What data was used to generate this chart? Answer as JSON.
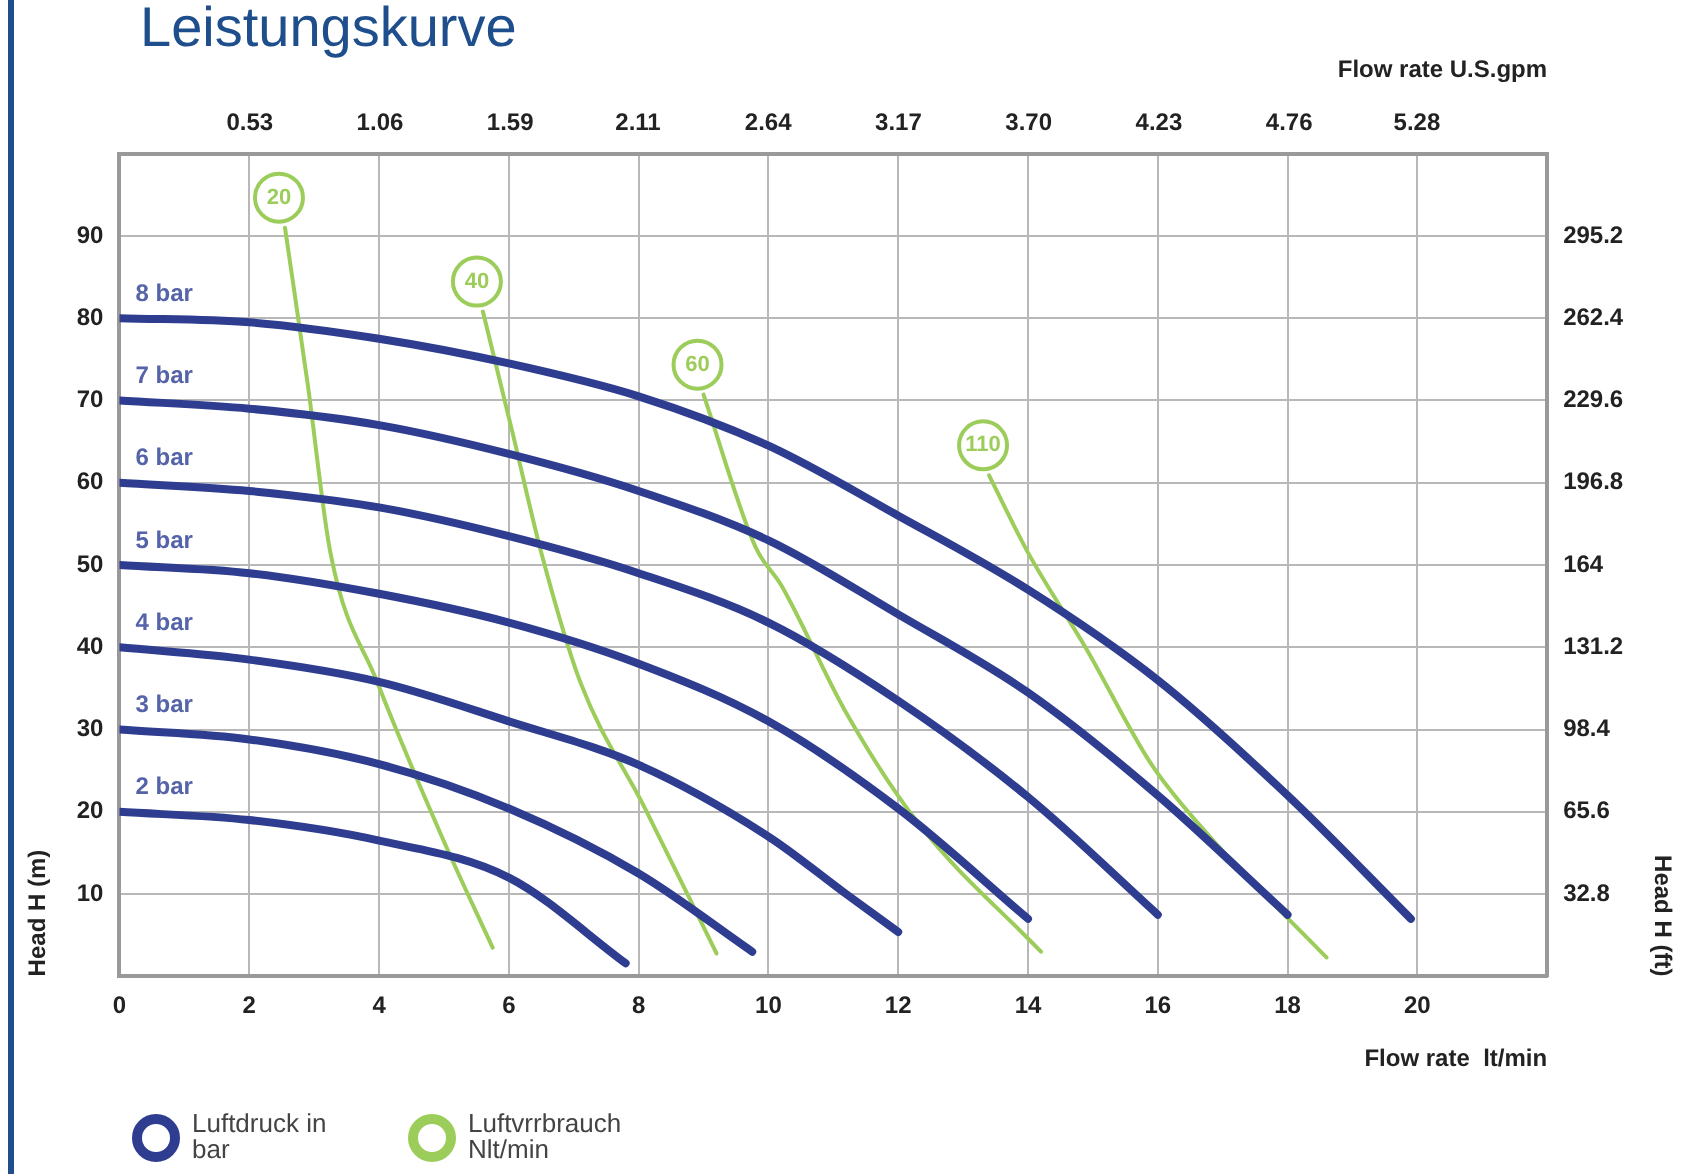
{
  "chart_data": {
    "type": "line",
    "title": "Leistungskurve",
    "xlabel": "Flow rate  lt/min",
    "x2label": "Flow rate U.S.gpm",
    "ylabel": "Head H (m)",
    "y2label": "Head H (ft)",
    "xlim": [
      0,
      22
    ],
    "xticks": [
      0,
      2,
      4,
      6,
      8,
      10,
      12,
      14,
      16,
      18,
      20
    ],
    "x2lim": [
      0,
      5.81
    ],
    "x2ticks": [
      0.53,
      1.06,
      1.59,
      2.11,
      2.64,
      3.17,
      {
        "value": 3.7,
        "label": "3.70"
      },
      4.23,
      4.76,
      5.28
    ],
    "ylim": [
      0,
      100
    ],
    "yticks": [
      10,
      20,
      30,
      40,
      50,
      60,
      70,
      80,
      90
    ],
    "y2lim": [
      0,
      328
    ],
    "y2ticks": [
      32.8,
      65.6,
      98.4,
      131.2,
      164,
      196.8,
      229.6,
      262.4,
      295.2
    ],
    "grid": true,
    "marker": "none",
    "line_style": "solid",
    "annotations": [
      "Luftdruck in bar",
      "Luftvrrbrauch Nlt/min"
    ],
    "series": [
      {
        "name": "8 bar",
        "color": "#2e3d8f",
        "x": [
          0,
          2,
          4,
          6,
          8,
          10,
          12,
          14,
          16,
          18,
          19.9
        ],
        "values": [
          80,
          79.5,
          77.5,
          74.5,
          70.5,
          64.5,
          56,
          47,
          36,
          22,
          7
        ]
      },
      {
        "name": "7 bar",
        "color": "#2e3d8f",
        "x": [
          0,
          2,
          4,
          6,
          8,
          10,
          12,
          14,
          16,
          18
        ],
        "values": [
          70,
          69,
          67,
          63.5,
          59,
          53,
          44,
          34.5,
          22,
          7.5
        ]
      },
      {
        "name": "6 bar",
        "color": "#2e3d8f",
        "x": [
          0,
          2,
          4,
          6,
          8,
          10,
          12,
          14,
          16
        ],
        "values": [
          60,
          59,
          57,
          53.5,
          49,
          43,
          33.5,
          21.8,
          7.5
        ]
      },
      {
        "name": "5 bar",
        "color": "#2e3d8f",
        "x": [
          0,
          2,
          4,
          6,
          8,
          10,
          12,
          14
        ],
        "values": [
          50,
          49,
          46.5,
          43,
          38,
          31,
          20.4,
          7
        ]
      },
      {
        "name": "4 bar",
        "color": "#2e3d8f",
        "x": [
          0,
          2,
          4,
          6,
          8,
          10,
          11.2,
          12
        ],
        "values": [
          40,
          38.5,
          35.8,
          31,
          25.7,
          17,
          10,
          5.4
        ]
      },
      {
        "name": "3 bar",
        "color": "#2e3d8f",
        "x": [
          0,
          2,
          4,
          6,
          8,
          9.75
        ],
        "values": [
          30,
          28.8,
          25.8,
          20.4,
          12.5,
          3
        ]
      },
      {
        "name": "2 bar",
        "color": "#2e3d8f",
        "x": [
          0,
          2,
          4,
          6,
          7.8
        ],
        "values": [
          20,
          19,
          16.5,
          12,
          1.6
        ]
      },
      {
        "name": "20",
        "color": "#9ccc5a",
        "x": [
          2.55,
          2.9,
          3.25,
          3.97,
          5.0,
          5.75
        ],
        "values": [
          91,
          72,
          51.5,
          35.8,
          16.4,
          3.5
        ]
      },
      {
        "name": "40",
        "color": "#9ccc5a",
        "x": [
          5.6,
          6.05,
          6.5,
          7.1,
          8.1,
          9.2
        ],
        "values": [
          80.8,
          66.3,
          51.5,
          35.8,
          20.4,
          2.8
        ]
      },
      {
        "name": "60",
        "color": "#9ccc5a",
        "x": [
          9.0,
          9.8,
          10.2,
          11.2,
          12.3,
          14.2
        ],
        "values": [
          70.7,
          52.2,
          47.5,
          32,
          18.7,
          3
        ]
      },
      {
        "name": "110",
        "color": "#9ccc5a",
        "x": [
          13.4,
          14,
          14.9,
          15.9,
          16.8,
          18.6
        ],
        "values": [
          60.9,
          51.5,
          39.8,
          25.8,
          17,
          2.3
        ]
      }
    ]
  }
}
